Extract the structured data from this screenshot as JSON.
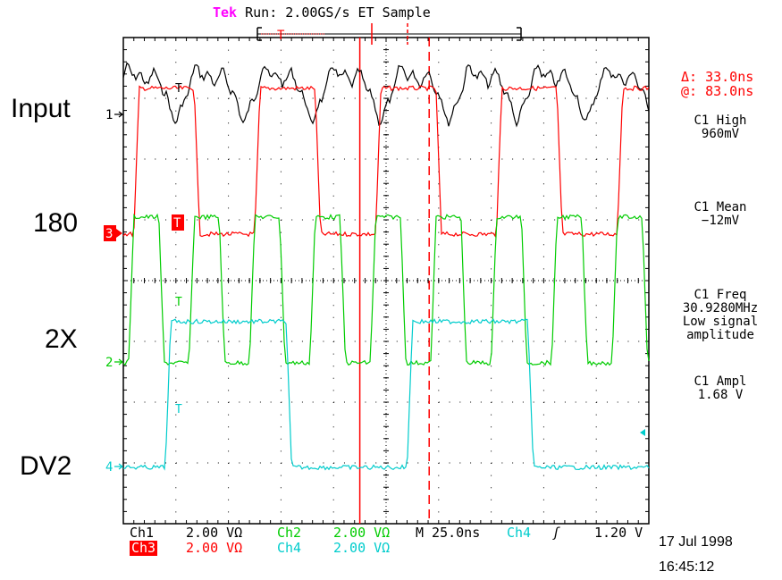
{
  "header": {
    "brand": "Tek",
    "status": "Run: 2.00GS/s ET Sample",
    "trigger_marker": "T"
  },
  "channel_labels": {
    "input": "Input",
    "ch3": "180",
    "ch2": "2X",
    "ch4": "DV2"
  },
  "channel_markers": {
    "ch1": "1",
    "ch3": "3",
    "ch2": "2",
    "ch4": "4",
    "trigger": "T"
  },
  "cursor_readout": {
    "delta": "Δ: 33.0ns",
    "at": "@: 83.0ns"
  },
  "measurements": [
    {
      "lines": [
        "C1 High",
        "960mV"
      ]
    },
    {
      "lines": [
        "C1 Mean",
        "−12mV"
      ]
    },
    {
      "lines": [
        "C1 Freq",
        "30.9280MHz",
        "Low signal",
        "amplitude"
      ]
    },
    {
      "lines": [
        "C1 Ampl",
        "1.68 V"
      ]
    }
  ],
  "footer": {
    "ch1_name": "Ch1",
    "ch1_scale": "2.00 VΩ",
    "ch2_name": "Ch2",
    "ch2_scale": "2.00 VΩ",
    "ch3_name": "Ch3",
    "ch3_scale": "2.00 VΩ",
    "ch4_name": "Ch4",
    "ch4_scale": "2.00 VΩ",
    "timebase": "M 25.0ns",
    "trigger_source": "Ch4",
    "trigger_slope": "ʃ",
    "trigger_level": "1.20 V",
    "date": "17 Jul 1998",
    "time": "16:45:12"
  },
  "colors": {
    "ch1": "#000000",
    "ch2": "#00cc00",
    "ch3": "#ff0000",
    "ch4": "#00cccc",
    "cursor": "#ff0000",
    "brand": "#ff00ff",
    "grid": "#000000"
  },
  "chart_data": {
    "type": "line",
    "title": "",
    "xlabel": "",
    "ylabel": "",
    "grid": true,
    "x_divisions": 10,
    "y_divisions": 8,
    "timebase_ns_per_div": 25.0,
    "volts_per_div": 2.0,
    "cursors": {
      "delta_ns": 33.0,
      "at_ns": 83.0
    },
    "series": [
      {
        "name": "Input",
        "channel": "Ch1",
        "waveform": "noisy-periodic",
        "period_div": 1.3,
        "high_div": 0.9,
        "low_div": 0.0
      },
      {
        "name": "180",
        "channel": "Ch3",
        "waveform": "square",
        "period_div": 2.3,
        "duty": 0.5,
        "first_rise_div": 0.2,
        "high_div": 2.4,
        "low_div": 0.0
      },
      {
        "name": "2X",
        "channel": "Ch2",
        "waveform": "square",
        "period_div": 1.15,
        "duty": 0.5,
        "first_rise_div": 0.1,
        "high_div": 2.4,
        "low_div": 0.0
      },
      {
        "name": "DV2",
        "channel": "Ch4",
        "waveform": "square",
        "period_div": 4.6,
        "duty": 0.5,
        "first_rise_div": 0.8,
        "high_div": 2.4,
        "low_div": 0.0
      }
    ]
  }
}
